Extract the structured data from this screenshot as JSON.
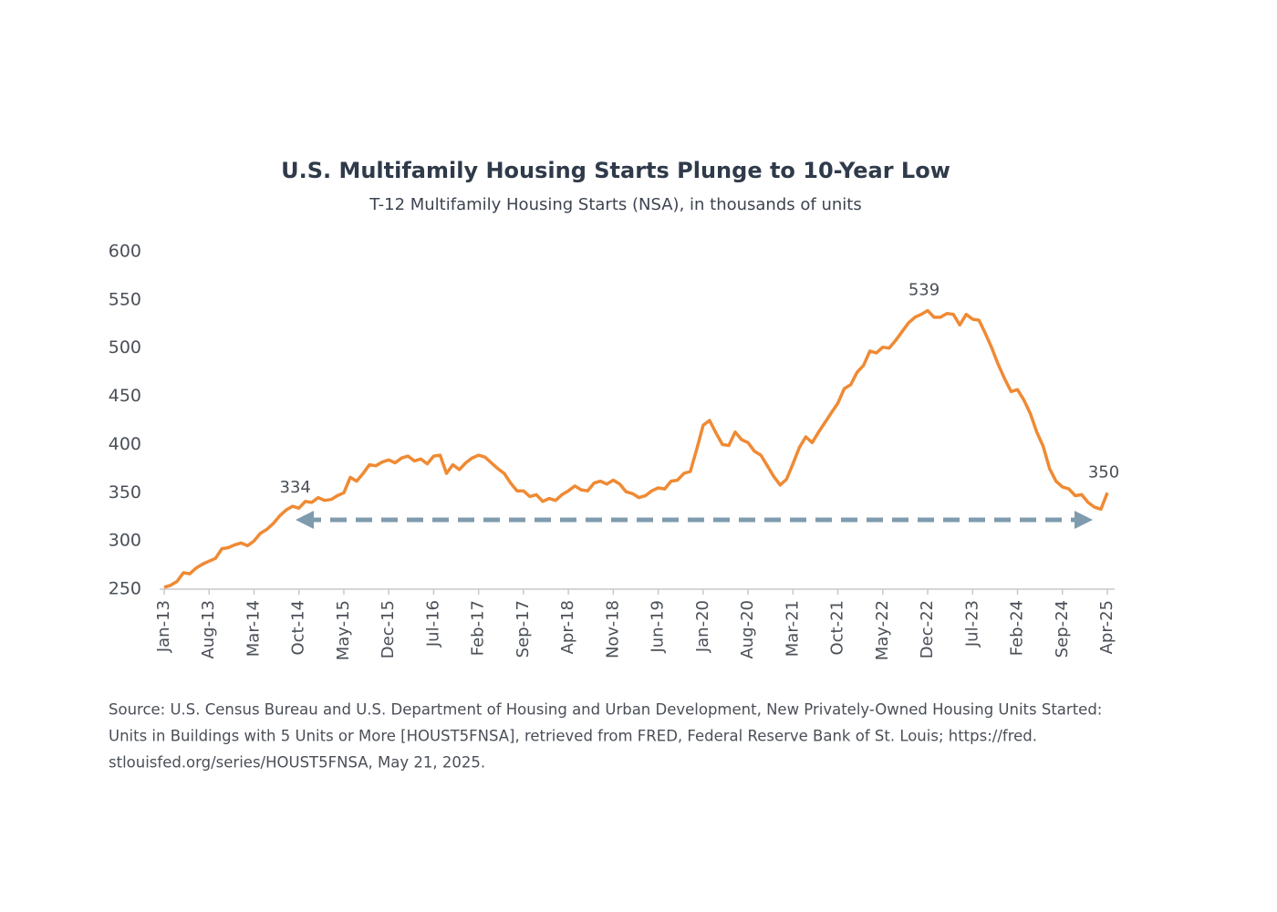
{
  "chart_data": {
    "type": "line",
    "title": "U.S. Multifamily Housing Starts Plunge to 10-Year Low",
    "subtitle": "T-12 Multifamily Housing Starts (NSA), in thousands of units",
    "color": "#ef8a34",
    "ylim": [
      250,
      600
    ],
    "yticks": [
      250,
      300,
      350,
      400,
      450,
      500,
      550,
      600
    ],
    "grid": false,
    "categories": [
      "Jan-13",
      null,
      null,
      null,
      null,
      null,
      null,
      "Aug-13",
      null,
      null,
      null,
      null,
      null,
      null,
      "Mar-14",
      null,
      null,
      null,
      null,
      null,
      null,
      "Oct-14",
      null,
      null,
      null,
      null,
      null,
      null,
      "May-15",
      null,
      null,
      null,
      null,
      null,
      null,
      "Dec-15",
      null,
      null,
      null,
      null,
      null,
      null,
      "Jul-16",
      null,
      null,
      null,
      null,
      null,
      null,
      "Feb-17",
      null,
      null,
      null,
      null,
      null,
      null,
      "Sep-17",
      null,
      null,
      null,
      null,
      null,
      null,
      "Apr-18",
      null,
      null,
      null,
      null,
      null,
      null,
      "Nov-18",
      null,
      null,
      null,
      null,
      null,
      null,
      "Jun-19",
      null,
      null,
      null,
      null,
      null,
      null,
      "Jan-20",
      null,
      null,
      null,
      null,
      null,
      null,
      "Aug-20",
      null,
      null,
      null,
      null,
      null,
      null,
      "Mar-21",
      null,
      null,
      null,
      null,
      null,
      null,
      "Oct-21",
      null,
      null,
      null,
      null,
      null,
      null,
      "May-22",
      null,
      null,
      null,
      null,
      null,
      null,
      "Dec-22",
      null,
      null,
      null,
      null,
      null,
      null,
      "Jul-23",
      null,
      null,
      null,
      null,
      null,
      null,
      "Feb-24",
      null,
      null,
      null,
      null,
      null,
      null,
      "Sep-24",
      null,
      null,
      null,
      null,
      null,
      null,
      "Apr-25"
    ],
    "values": [
      252,
      254,
      258,
      267,
      266,
      272,
      276,
      279,
      282,
      292,
      293,
      296,
      298,
      295,
      300,
      308,
      312,
      318,
      326,
      332,
      336,
      334,
      341,
      340,
      345,
      342,
      343,
      347,
      350,
      366,
      362,
      370,
      379,
      378,
      382,
      384,
      381,
      386,
      388,
      383,
      385,
      380,
      388,
      389,
      370,
      379,
      374,
      381,
      386,
      389,
      387,
      381,
      375,
      370,
      360,
      352,
      352,
      346,
      348,
      341,
      344,
      342,
      348,
      352,
      357,
      353,
      352,
      360,
      362,
      359,
      363,
      359,
      351,
      349,
      345,
      347,
      352,
      355,
      354,
      362,
      363,
      370,
      372,
      395,
      420,
      425,
      412,
      400,
      399,
      413,
      405,
      402,
      393,
      389,
      378,
      367,
      358,
      364,
      380,
      397,
      408,
      402,
      413,
      423,
      433,
      443,
      458,
      462,
      475,
      482,
      497,
      495,
      501,
      500,
      508,
      517,
      526,
      532,
      535,
      539,
      532,
      532,
      536,
      535,
      524,
      535,
      530,
      529,
      515,
      500,
      483,
      468,
      455,
      457,
      446,
      432,
      413,
      398,
      375,
      362,
      356,
      354,
      347,
      348,
      340,
      335,
      333,
      350
    ],
    "value_labels": [
      null,
      null,
      null,
      null,
      null,
      null,
      null,
      null,
      null,
      null,
      null,
      null,
      null,
      null,
      null,
      null,
      null,
      null,
      null,
      null,
      null,
      "334",
      null,
      null,
      null,
      null,
      null,
      null,
      null,
      null,
      null,
      null,
      null,
      null,
      null,
      null,
      null,
      null,
      null,
      null,
      null,
      null,
      null,
      null,
      null,
      null,
      null,
      null,
      null,
      null,
      null,
      null,
      null,
      null,
      null,
      null,
      null,
      null,
      null,
      null,
      null,
      null,
      null,
      null,
      null,
      null,
      null,
      null,
      null,
      null,
      null,
      null,
      null,
      null,
      null,
      null,
      null,
      null,
      null,
      null,
      null,
      null,
      null,
      null,
      null,
      null,
      null,
      null,
      null,
      null,
      null,
      null,
      null,
      null,
      null,
      null,
      null,
      null,
      null,
      null,
      null,
      null,
      null,
      null,
      null,
      null,
      null,
      null,
      null,
      null,
      null,
      null,
      null,
      null,
      null,
      null,
      null,
      null,
      null,
      "539",
      null,
      null,
      null,
      null,
      null,
      null,
      null,
      null,
      null,
      null,
      null,
      null,
      null,
      null,
      null,
      null,
      null,
      null,
      null,
      null,
      null,
      null,
      null,
      null,
      null,
      null,
      null,
      "350"
    ],
    "source": [
      "Source: U.S. Census Bureau and U.S. Department of Housing and Urban Development, New Privately-Owned Housing Units Started:",
      "Units in Buildings with 5 Units or More [HOUST5FNSA], retrieved from FRED, Federal Reserve Bank of St. Louis; https://fred.",
      "stlouisfed.org/series/HOUST5FNSA, May 21, 2025."
    ]
  }
}
